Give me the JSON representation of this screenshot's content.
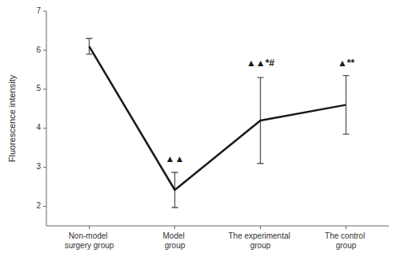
{
  "chart_data": {
    "type": "line",
    "categories": [
      "Non-model surgery group",
      "Model group",
      "The experimental group",
      "The control group"
    ],
    "values": [
      6.1,
      2.42,
      4.2,
      4.6
    ],
    "errors": [
      0.2,
      0.45,
      1.1,
      0.75
    ],
    "ylabel": "Fluorescence intensity",
    "ylim": [
      1.5,
      7.0
    ],
    "yticks": [
      2,
      3,
      4,
      5,
      6,
      7
    ],
    "color": "#1a1a1a",
    "annotations": [
      {
        "text": "▲▲",
        "category": "Model group",
        "y": 3.1
      },
      {
        "text": "▲▲*#",
        "category": "The experimental group",
        "y": 5.55
      },
      {
        "text": "▲**",
        "category": "The control group",
        "y": 5.55
      }
    ]
  }
}
